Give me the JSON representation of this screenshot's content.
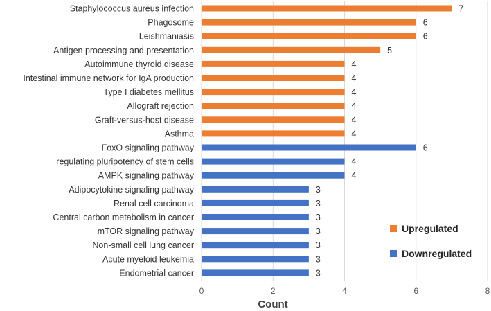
{
  "chart_data": {
    "type": "bar",
    "orientation": "horizontal",
    "title": "",
    "xlabel": "Count",
    "ylabel": "",
    "xlim": [
      0,
      8
    ],
    "xticks": [
      0,
      2,
      4,
      6,
      8
    ],
    "grid": "vertical",
    "legend_position": "right",
    "categories": [
      "Staphylococcus aureus infection",
      "Phagosome",
      "Leishmaniasis",
      "Antigen processing and presentation",
      "Autoimmune thyroid disease",
      "Intestinal immune network for IgA production",
      "Type I diabetes mellitus",
      "Allograft rejection",
      "Graft-versus-host disease",
      "Asthma",
      "FoxO signaling pathway",
      "regulating pluripotency of stem cells",
      "AMPK signaling pathway",
      "Adipocytokine signaling pathway",
      "Renal cell carcinoma",
      "Central carbon metabolism in cancer",
      "mTOR signaling pathway",
      "Non-small cell lung cancer",
      "Acute myeloid leukemia",
      "Endometrial cancer"
    ],
    "values": [
      7,
      6,
      6,
      5,
      4,
      4,
      4,
      4,
      4,
      4,
      6,
      4,
      4,
      3,
      3,
      3,
      3,
      3,
      3,
      3
    ],
    "groups": [
      "Upregulated",
      "Upregulated",
      "Upregulated",
      "Upregulated",
      "Upregulated",
      "Upregulated",
      "Upregulated",
      "Upregulated",
      "Upregulated",
      "Upregulated",
      "Downregulated",
      "Downregulated",
      "Downregulated",
      "Downregulated",
      "Downregulated",
      "Downregulated",
      "Downregulated",
      "Downregulated",
      "Downregulated",
      "Downregulated"
    ],
    "series": [
      {
        "name": "Upregulated",
        "color": "#ED7D31"
      },
      {
        "name": "Downregulated",
        "color": "#4472C4"
      }
    ]
  }
}
